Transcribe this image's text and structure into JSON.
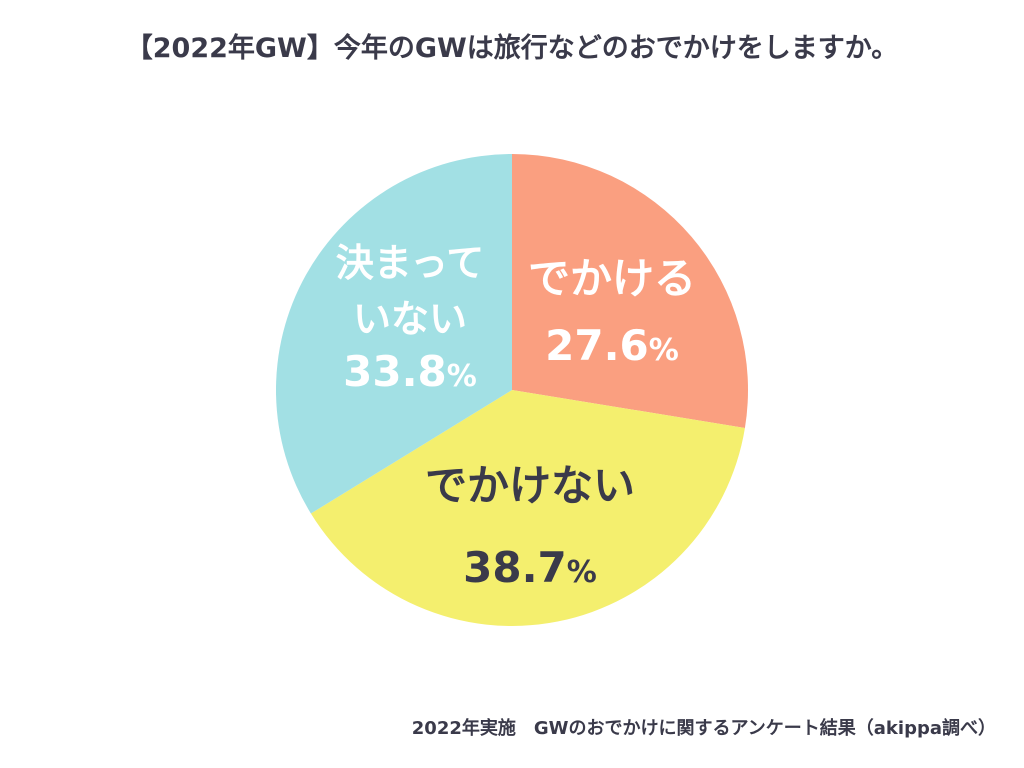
{
  "title": "【2022年GW】今年のGWは旅行などのおでかけをしますか。",
  "footer": "2022年実施　GWのおでかけに関するアンケート結果（akippa調べ）",
  "chart_data": {
    "type": "pie",
    "title": "【2022年GW】今年のGWは旅行などのおでかけをしますか。",
    "unit": "%",
    "slices": [
      {
        "label": "でかける",
        "label_lines": [
          "でかける"
        ],
        "value": 27.6,
        "value_text": "27.6",
        "color": "#FA9F80",
        "text_color": "#ffffff"
      },
      {
        "label": "でかけない",
        "label_lines": [
          "でかけない"
        ],
        "value": 38.7,
        "value_text": "38.7",
        "color": "#F4EF6E",
        "text_color": "#3a3a4a"
      },
      {
        "label": "決まっていない",
        "label_lines": [
          "決まって",
          "いない"
        ],
        "value": 33.8,
        "value_text": "33.8",
        "color": "#A2E0E4",
        "text_color": "#ffffff"
      }
    ],
    "start_angle": "12 o'clock",
    "direction": "clockwise"
  }
}
